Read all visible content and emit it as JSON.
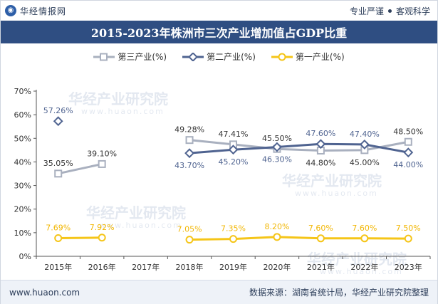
{
  "header": {
    "brand": "华经情报网",
    "tag1": "专业严谨",
    "tag2": "客观科学"
  },
  "footer": {
    "url": "www.huaon.com",
    "source": "数据来源：湖南省统计局，华经产业研究院整理"
  },
  "watermark": {
    "text": "华经产业研究院",
    "sub": "www.huaon.com"
  },
  "colors": {
    "tertiary": "#a9b0bf",
    "secondary": "#4f6390",
    "primary": "#f5c518",
    "title_bg": "#2f4e82"
  },
  "chart_data": {
    "type": "line",
    "title": "2015-2023年株洲市三次产业增加值占GDP比重",
    "categories": [
      "2015年",
      "2016年",
      "2017年",
      "2018年",
      "2019年",
      "2020年",
      "2021年",
      "2022年",
      "2023年"
    ],
    "ylim": [
      0,
      70
    ],
    "yticks": [
      "0%",
      "10%",
      "20%",
      "30%",
      "40%",
      "50%",
      "60%",
      "70%"
    ],
    "ytick_values": [
      0,
      10,
      20,
      30,
      40,
      50,
      60,
      70
    ],
    "series": [
      {
        "name": "第三产业(%)",
        "key": "tertiary",
        "marker": "square",
        "values": [
          35.05,
          39.1,
          null,
          49.28,
          47.41,
          45.5,
          44.8,
          45.0,
          48.5
        ],
        "labels": [
          "35.05%",
          "39.10%",
          "",
          "49.28%",
          "47.41%",
          "45.50%",
          "44.80%",
          "45.00%",
          "48.50%"
        ]
      },
      {
        "name": "第二产业(%)",
        "key": "secondary",
        "marker": "diamond",
        "values": [
          57.26,
          null,
          null,
          43.7,
          45.2,
          46.3,
          47.6,
          47.4,
          44.0
        ],
        "labels": [
          "57.26%",
          "",
          "",
          "43.70%",
          "45.20%",
          "46.30%",
          "47.60%",
          "47.40%",
          "44.00%"
        ]
      },
      {
        "name": "第一产业(%)",
        "key": "primary",
        "marker": "circle",
        "values": [
          7.69,
          7.92,
          null,
          7.05,
          7.35,
          8.2,
          7.6,
          7.6,
          7.5
        ],
        "labels": [
          "7.69%",
          "7.92%",
          "",
          "7.05%",
          "7.35%",
          "8.20%",
          "7.60%",
          "7.60%",
          "7.50%"
        ]
      }
    ]
  }
}
